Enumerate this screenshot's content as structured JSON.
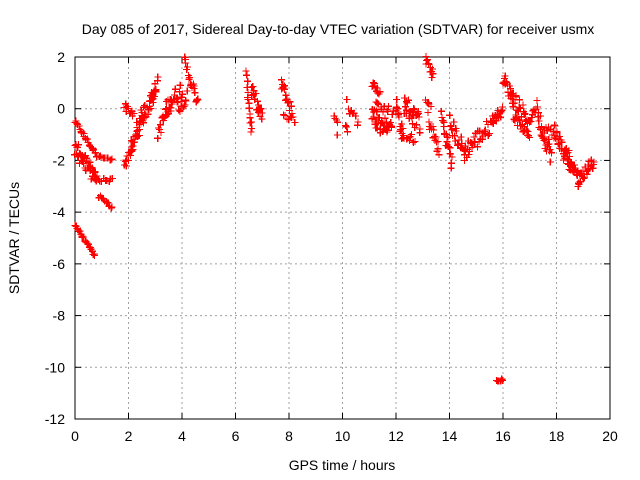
{
  "chart_data": {
    "type": "scatter",
    "title": "Day 085 of 2017, Sidereal Day-to-day VTEC variation (SDTVAR) for receiver usmx",
    "xlabel": "GPS time / hours",
    "ylabel": "SDTVAR / TECUs",
    "xlim": [
      0,
      20
    ],
    "ylim": [
      -12,
      2
    ],
    "xticks": [
      0,
      2,
      4,
      6,
      8,
      10,
      12,
      14,
      16,
      18,
      20
    ],
    "yticks": [
      -12,
      -10,
      -8,
      -6,
      -4,
      -2,
      0,
      2
    ],
    "xtick_labels": [
      "0",
      "2",
      "4",
      "6",
      "8",
      "10",
      "12",
      "14",
      "16",
      "18",
      "20"
    ],
    "ytick_labels": [
      "-12",
      "-10",
      "-8",
      "-6",
      "-4",
      "-2",
      "0",
      "2"
    ],
    "grid": true,
    "marker": "+",
    "color": "#ff0000",
    "series": [
      {
        "name": "SDTVAR",
        "segments": [
          {
            "x": [
              0.0,
              0.8
            ],
            "y": [
              -0.5,
              -1.8
            ],
            "n": 24,
            "spread": 0.08
          },
          {
            "x": [
              0.0,
              0.8
            ],
            "y": [
              -1.3,
              -2.6
            ],
            "n": 24,
            "spread": 0.15
          },
          {
            "x": [
              0.0,
              0.8
            ],
            "y": [
              -1.8,
              -2.8
            ],
            "n": 18,
            "spread": 0.15
          },
          {
            "x": [
              0.8,
              1.4
            ],
            "y": [
              -1.8,
              -2.0
            ],
            "n": 12,
            "spread": 0.06
          },
          {
            "x": [
              0.8,
              1.4
            ],
            "y": [
              -2.7,
              -2.8
            ],
            "n": 10,
            "spread": 0.1
          },
          {
            "x": [
              0.9,
              1.4
            ],
            "y": [
              -3.4,
              -3.8
            ],
            "n": 10,
            "spread": 0.08
          },
          {
            "x": [
              0.0,
              0.75
            ],
            "y": [
              -4.5,
              -5.7
            ],
            "n": 22,
            "spread": 0.06
          },
          {
            "x": [
              1.85,
              2.2
            ],
            "y": [
              -2.3,
              -1.3
            ],
            "n": 14,
            "spread": 0.2
          },
          {
            "x": [
              1.85,
              2.2
            ],
            "y": [
              0.1,
              -0.2
            ],
            "n": 10,
            "spread": 0.15
          },
          {
            "x": [
              2.1,
              2.6
            ],
            "y": [
              -1.6,
              -0.2
            ],
            "n": 22,
            "spread": 0.3
          },
          {
            "x": [
              2.3,
              3.0
            ],
            "y": [
              -0.7,
              0.6
            ],
            "n": 26,
            "spread": 0.35
          },
          {
            "x": [
              2.8,
              3.1
            ],
            "y": [
              0.3,
              1.0
            ],
            "n": 12,
            "spread": 0.25
          },
          {
            "x": [
              3.1,
              3.6
            ],
            "y": [
              -0.9,
              0.2
            ],
            "n": 18,
            "spread": 0.3
          },
          {
            "x": [
              3.4,
              4.0
            ],
            "y": [
              0.0,
              0.8
            ],
            "n": 22,
            "spread": 0.35
          },
          {
            "x": [
              3.9,
              4.2
            ],
            "y": [
              0.0,
              0.5
            ],
            "n": 10,
            "spread": 0.2
          },
          {
            "x": [
              4.1,
              4.6
            ],
            "y": [
              1.8,
              0.2
            ],
            "n": 20,
            "spread": 0.25
          },
          {
            "x": [
              6.4,
              6.6
            ],
            "y": [
              1.3,
              -0.9
            ],
            "n": 16,
            "spread": 0.2
          },
          {
            "x": [
              6.6,
              7.0
            ],
            "y": [
              0.7,
              -0.4
            ],
            "n": 18,
            "spread": 0.3
          },
          {
            "x": [
              7.7,
              8.1
            ],
            "y": [
              1.0,
              -0.1
            ],
            "n": 18,
            "spread": 0.25
          },
          {
            "x": [
              7.8,
              8.2
            ],
            "y": [
              -0.2,
              -0.5
            ],
            "n": 8,
            "spread": 0.15
          },
          {
            "x": [
              9.7,
              9.8
            ],
            "y": [
              -0.2,
              -0.5
            ],
            "n": 4,
            "spread": 0.1
          },
          {
            "x": [
              9.8,
              9.8
            ],
            "y": [
              -1.0,
              -1.0
            ],
            "n": 1,
            "spread": 0.05
          },
          {
            "x": [
              10.1,
              10.2
            ],
            "y": [
              0.35,
              0.35
            ],
            "n": 1,
            "spread": 0.03
          },
          {
            "x": [
              10.1,
              10.2
            ],
            "y": [
              -0.6,
              -0.8
            ],
            "n": 3,
            "spread": 0.1
          },
          {
            "x": [
              10.2,
              10.6
            ],
            "y": [
              -0.1,
              -0.5
            ],
            "n": 8,
            "spread": 0.2
          },
          {
            "x": [
              11.1,
              11.4
            ],
            "y": [
              1.0,
              0.6
            ],
            "n": 10,
            "spread": 0.15
          },
          {
            "x": [
              11.1,
              11.9
            ],
            "y": [
              -0.1,
              -0.3
            ],
            "n": 34,
            "spread": 0.45
          },
          {
            "x": [
              11.2,
              11.7
            ],
            "y": [
              -0.6,
              -0.8
            ],
            "n": 14,
            "spread": 0.25
          },
          {
            "x": [
              12.0,
              12.3
            ],
            "y": [
              0.2,
              -1.3
            ],
            "n": 18,
            "spread": 0.3
          },
          {
            "x": [
              12.3,
              12.9
            ],
            "y": [
              0.2,
              -0.6
            ],
            "n": 28,
            "spread": 0.4
          },
          {
            "x": [
              12.4,
              12.7
            ],
            "y": [
              -1.0,
              -1.3
            ],
            "n": 8,
            "spread": 0.2
          },
          {
            "x": [
              13.1,
              13.4
            ],
            "y": [
              1.9,
              1.3
            ],
            "n": 14,
            "spread": 0.2
          },
          {
            "x": [
              13.1,
              13.3
            ],
            "y": [
              0.3,
              0.1
            ],
            "n": 5,
            "spread": 0.1
          },
          {
            "x": [
              13.2,
              13.6
            ],
            "y": [
              -0.4,
              -1.6
            ],
            "n": 18,
            "spread": 0.3
          },
          {
            "x": [
              13.7,
              14.1
            ],
            "y": [
              -0.3,
              -2.1
            ],
            "n": 22,
            "spread": 0.35
          },
          {
            "x": [
              14.0,
              14.6
            ],
            "y": [
              -0.5,
              -1.8
            ],
            "n": 24,
            "spread": 0.35
          },
          {
            "x": [
              14.6,
              15.6
            ],
            "y": [
              -1.6,
              -0.6
            ],
            "n": 34,
            "spread": 0.35
          },
          {
            "x": [
              15.6,
              16.0
            ],
            "y": [
              -0.4,
              -0.1
            ],
            "n": 14,
            "spread": 0.2
          },
          {
            "x": [
              15.75,
              16.0
            ],
            "y": [
              -10.5,
              -10.5
            ],
            "n": 6,
            "spread": 0.04
          },
          {
            "x": [
              16.0,
              16.4
            ],
            "y": [
              1.2,
              0.3
            ],
            "n": 18,
            "spread": 0.25
          },
          {
            "x": [
              16.3,
              17.0
            ],
            "y": [
              0.6,
              -0.5
            ],
            "n": 22,
            "spread": 0.3
          },
          {
            "x": [
              16.4,
              17.0
            ],
            "y": [
              -0.3,
              -1.1
            ],
            "n": 20,
            "spread": 0.15
          },
          {
            "x": [
              17.0,
              17.3
            ],
            "y": [
              -0.4,
              0.2
            ],
            "n": 10,
            "spread": 0.2
          },
          {
            "x": [
              17.3,
              17.8
            ],
            "y": [
              -0.3,
              -1.8
            ],
            "n": 26,
            "spread": 0.4
          },
          {
            "x": [
              17.6,
              18.1
            ],
            "y": [
              -0.8,
              -1.1
            ],
            "n": 10,
            "spread": 0.2
          },
          {
            "x": [
              17.9,
              18.6
            ],
            "y": [
              -0.8,
              -2.5
            ],
            "n": 28,
            "spread": 0.35
          },
          {
            "x": [
              18.3,
              18.9
            ],
            "y": [
              -1.5,
              -2.8
            ],
            "n": 26,
            "spread": 0.3
          },
          {
            "x": [
              18.8,
              19.4
            ],
            "y": [
              -2.8,
              -2.0
            ],
            "n": 22,
            "spread": 0.25
          }
        ]
      }
    ]
  }
}
